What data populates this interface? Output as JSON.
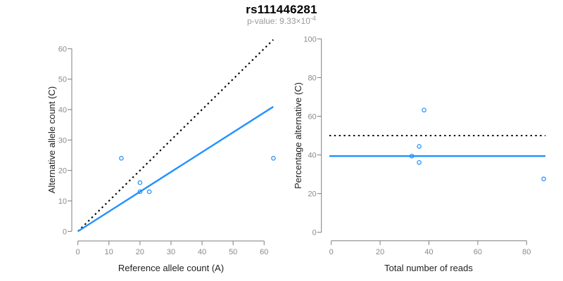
{
  "title": "rs111446281",
  "subtitle": {
    "prefix": "p-value: ",
    "mantissa": "9.33",
    "times": "×",
    "base": "10",
    "exponent": "-4"
  },
  "colors": {
    "accent_blue": "#1E90FF",
    "axis_gray": "#7d7d7d",
    "tick_label_gray": "#8a8a8a",
    "subtitle_gray": "#9a9a9a",
    "identity_line_black": "#000000"
  },
  "chart_data": [
    {
      "type": "scatter",
      "panel": "left",
      "xlabel": "Reference allele count (A)",
      "ylabel": "Alternative allele count (C)",
      "xlim": [
        0,
        63
      ],
      "ylim": [
        0,
        63
      ],
      "xticks": [
        0,
        10,
        20,
        30,
        40,
        50,
        60
      ],
      "yticks": [
        0,
        10,
        20,
        30,
        40,
        50,
        60
      ],
      "grid": false,
      "points": [
        {
          "x": 14,
          "y": 24
        },
        {
          "x": 20,
          "y": 16
        },
        {
          "x": 20,
          "y": 13
        },
        {
          "x": 23,
          "y": 13
        },
        {
          "x": 63,
          "y": 24
        }
      ],
      "lines": [
        {
          "name": "identity-line",
          "style": "dotted",
          "color": "#000000",
          "slope": 1,
          "intercept": 0
        },
        {
          "name": "fit-line",
          "style": "solid",
          "color": "#1E90FF",
          "slope": 0.6502,
          "intercept": 0
        }
      ]
    },
    {
      "type": "scatter",
      "panel": "right",
      "xlabel": "Total number of reads",
      "ylabel": "Percentage alternative (C)",
      "xlim": [
        0,
        88
      ],
      "ylim": [
        0,
        100
      ],
      "xticks": [
        0,
        20,
        40,
        60,
        80
      ],
      "yticks": [
        0,
        20,
        40,
        60,
        80,
        100
      ],
      "grid": false,
      "points": [
        {
          "x": 38,
          "y": 63.2
        },
        {
          "x": 36,
          "y": 44.4
        },
        {
          "x": 33,
          "y": 39.4
        },
        {
          "x": 36,
          "y": 36.1
        },
        {
          "x": 87,
          "y": 27.6
        }
      ],
      "lines": [
        {
          "name": "null-line",
          "style": "dotted",
          "color": "#000000",
          "y": 50
        },
        {
          "name": "fit-line",
          "style": "solid",
          "color": "#1E90FF",
          "y": 39.4
        }
      ]
    }
  ]
}
